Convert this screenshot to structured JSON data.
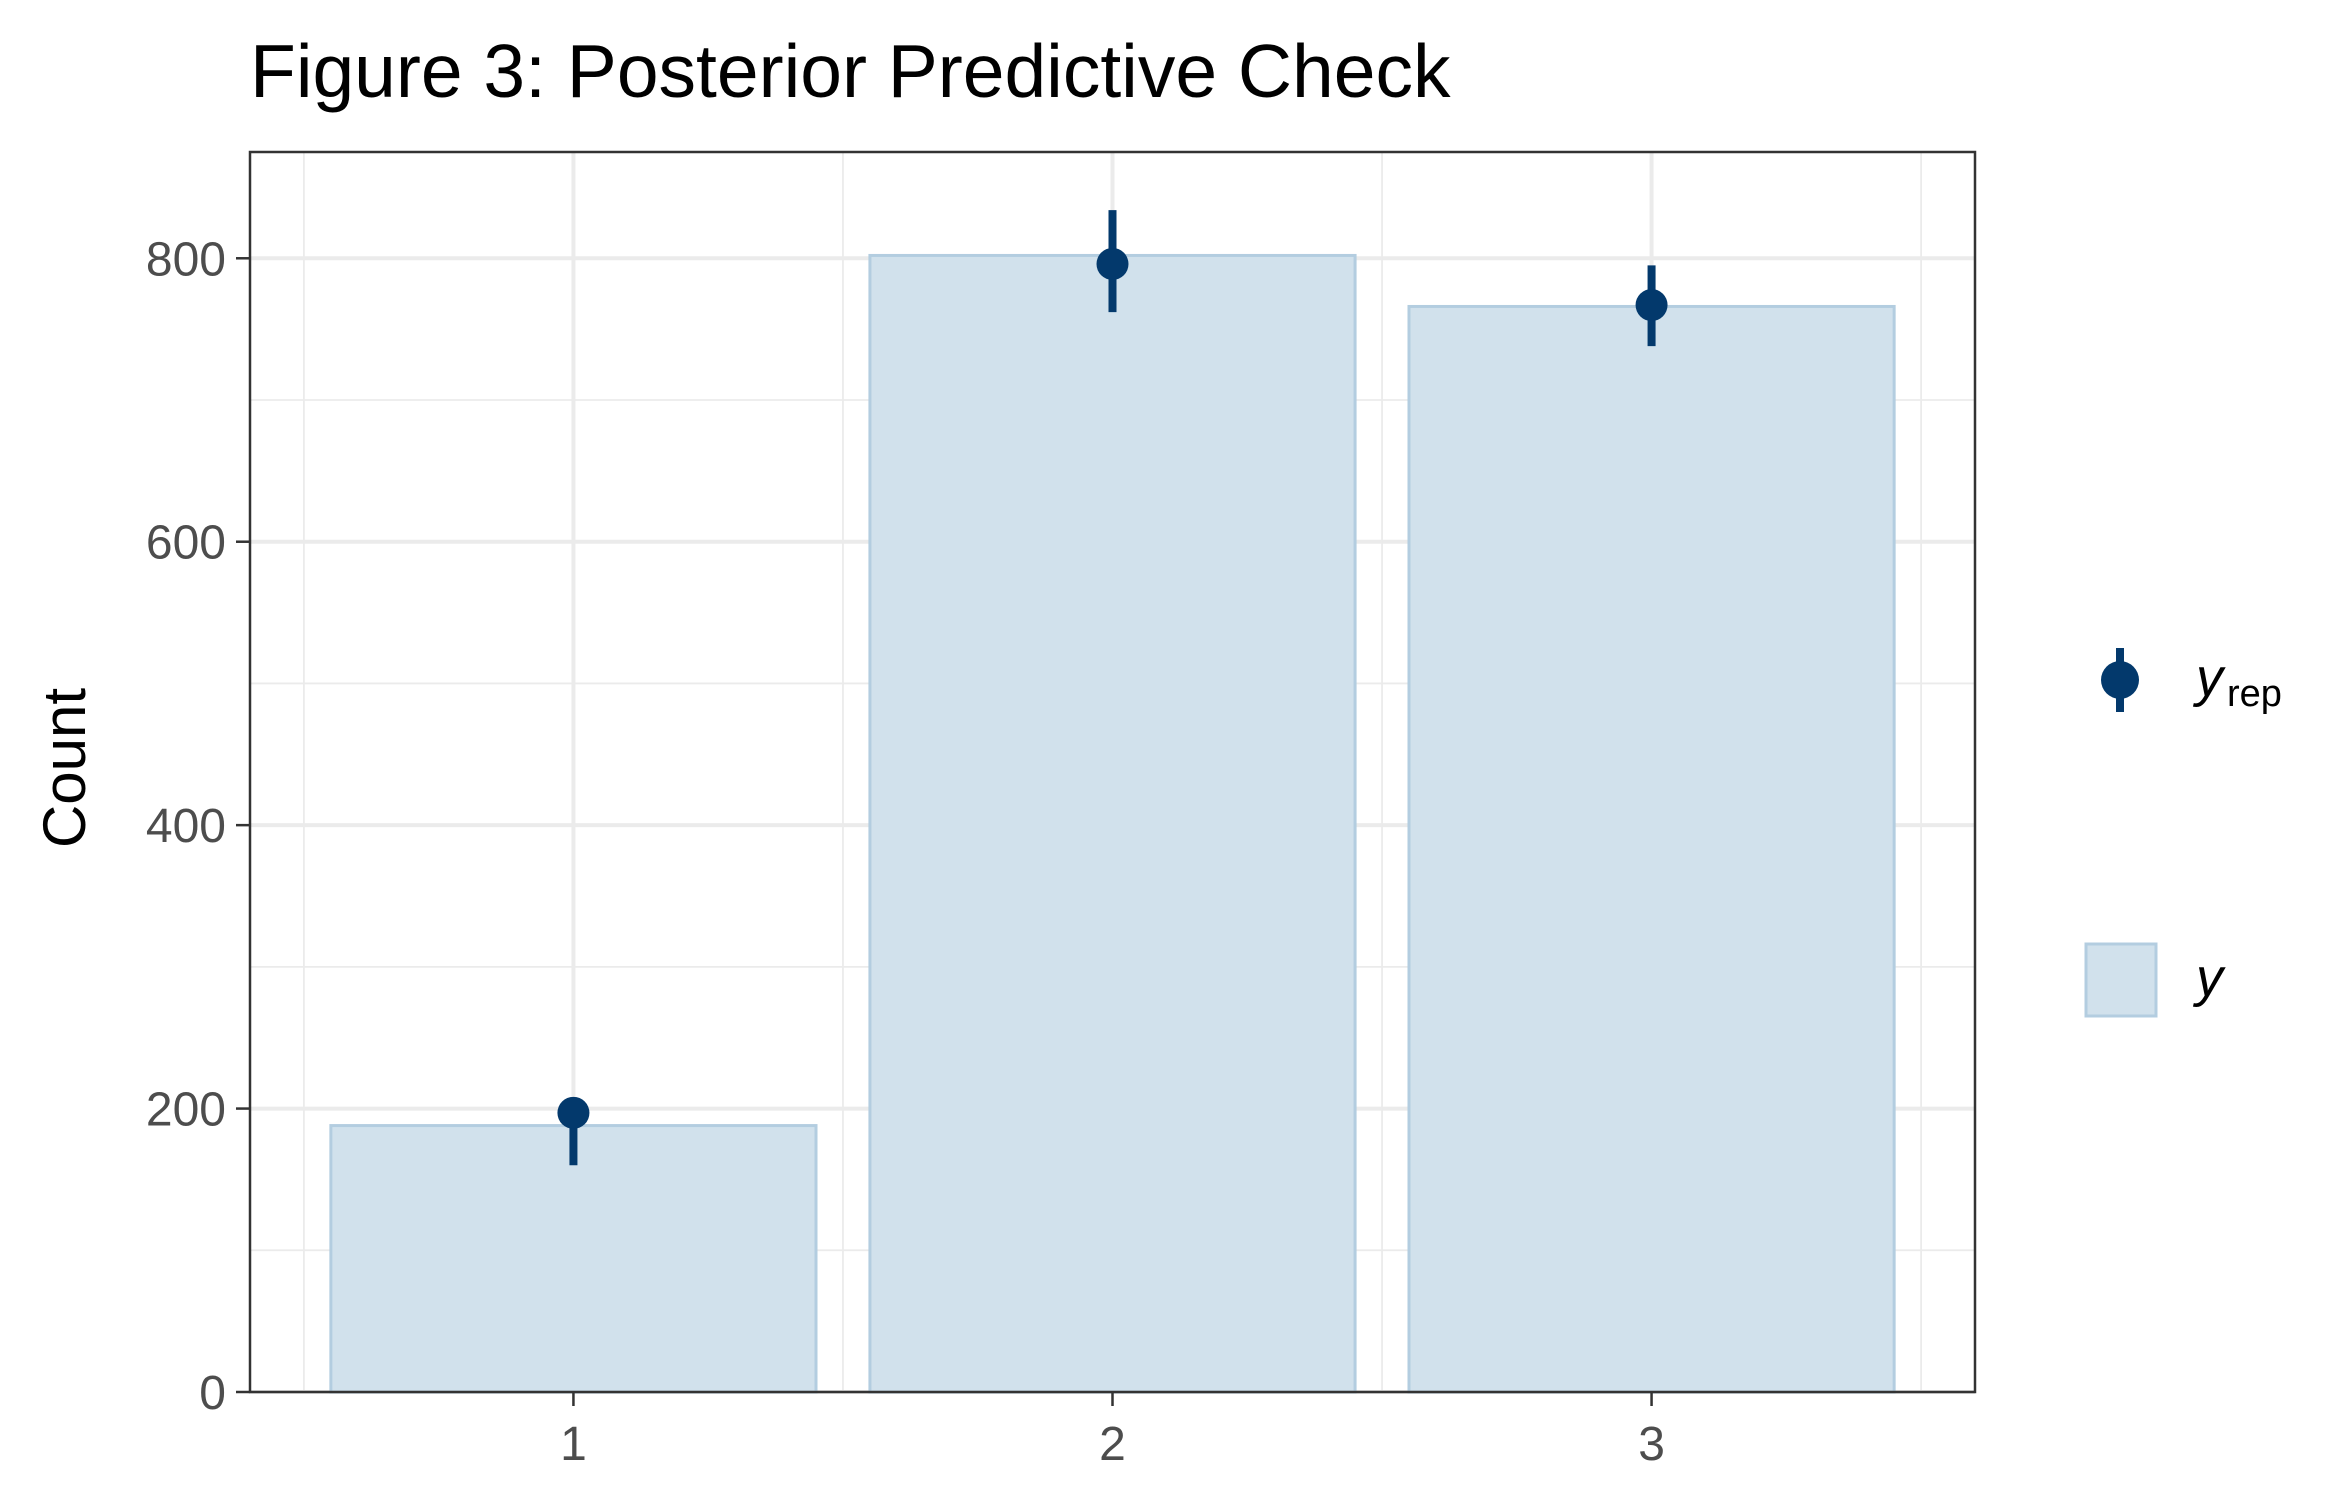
{
  "chart_data": {
    "type": "bar",
    "title": "Figure 3: Posterior Predictive Check",
    "xlabel": "",
    "ylabel": "Count",
    "categories": [
      "1",
      "2",
      "3"
    ],
    "y_ticks": [
      0,
      200,
      400,
      600,
      800
    ],
    "ylim": [
      0,
      875
    ],
    "xlim": [
      0.4,
      3.6
    ],
    "grid": true,
    "legend_position": "right",
    "series": [
      {
        "name": "y",
        "kind": "bar",
        "values": [
          188,
          802,
          766
        ],
        "fill": "#d1e1ec",
        "stroke": "#b3cde0"
      },
      {
        "name": "y_rep",
        "kind": "pointrange",
        "values": [
          197,
          796,
          767
        ],
        "lower": [
          160,
          762,
          738
        ],
        "upper": [
          205,
          834,
          795
        ],
        "color": "#03396c"
      }
    ],
    "legend": [
      {
        "series": "y_rep",
        "label": "y",
        "subscript": "rep"
      },
      {
        "series": "y",
        "label": "y",
        "subscript": ""
      }
    ]
  }
}
